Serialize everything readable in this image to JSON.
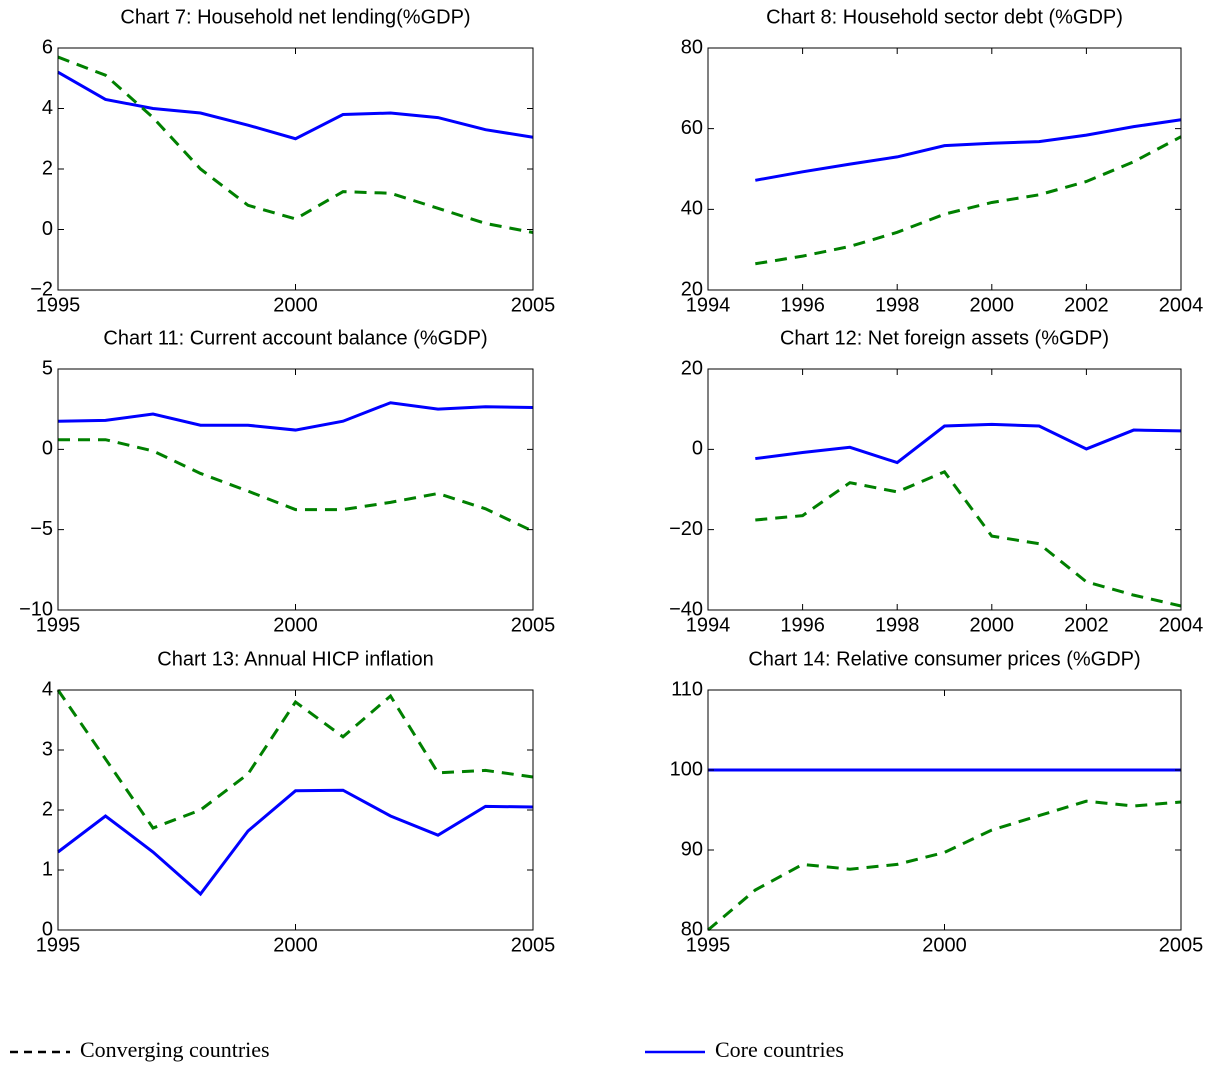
{
  "chart_data": [
    {
      "type": "line",
      "title": "Chart 7: Household net lending(%GDP)",
      "x": [
        1995,
        1996,
        1997,
        1998,
        1999,
        2000,
        2001,
        2002,
        2003,
        2004,
        2005
      ],
      "xlim": [
        1995,
        2005
      ],
      "xticks": [
        1995,
        2000,
        2005
      ],
      "ylim": [
        -2,
        6
      ],
      "yticks": [
        {
          "value": -2,
          "label": "−2"
        },
        0,
        2,
        4,
        6
      ],
      "series": [
        {
          "color": "#0000ff",
          "dash": false,
          "values": [
            5.2,
            4.3,
            4.0,
            3.85,
            3.45,
            3.0,
            3.8,
            3.85,
            3.7,
            3.3,
            3.05
          ]
        },
        {
          "color": "#008000",
          "dash": true,
          "values": [
            5.7,
            5.1,
            3.7,
            2.0,
            0.8,
            0.35,
            1.25,
            1.2,
            0.7,
            0.2,
            -0.1
          ]
        }
      ]
    },
    {
      "type": "line",
      "title": "Chart 8: Household sector debt (%GDP)",
      "x": [
        1995,
        1996,
        1997,
        1998,
        1999,
        2000,
        2001,
        2002,
        2003,
        2004
      ],
      "xlim": [
        1994,
        2004
      ],
      "xticks": [
        1994,
        1996,
        1998,
        2000,
        2002,
        2004
      ],
      "ylim": [
        20,
        80
      ],
      "yticks": [
        20,
        40,
        60,
        80
      ],
      "series": [
        {
          "color": "#0000ff",
          "dash": false,
          "values": [
            47.2,
            49.3,
            51.2,
            53,
            55.8,
            56.4,
            56.8,
            58.4,
            60.5,
            62.2
          ]
        },
        {
          "color": "#008000",
          "dash": true,
          "values": [
            26.5,
            28.4,
            30.8,
            34.3,
            38.8,
            41.7,
            43.6,
            46.9,
            51.8,
            58
          ]
        }
      ]
    },
    {
      "type": "line",
      "title": "Chart 11: Current account balance (%GDP)",
      "x": [
        1995,
        1996,
        1997,
        1998,
        1999,
        2000,
        2001,
        2002,
        2003,
        2004,
        2005
      ],
      "xlim": [
        1995,
        2005
      ],
      "xticks": [
        1995,
        2000,
        2005
      ],
      "ylim": [
        -10,
        5
      ],
      "yticks": [
        {
          "value": -10,
          "label": "−10"
        },
        {
          "value": -5,
          "label": "−5"
        },
        0,
        5
      ],
      "series": [
        {
          "color": "#0000ff",
          "dash": false,
          "values": [
            1.75,
            1.8,
            2.2,
            1.5,
            1.5,
            1.2,
            1.75,
            2.9,
            2.5,
            2.65,
            2.6
          ]
        },
        {
          "color": "#008000",
          "dash": true,
          "values": [
            0.6,
            0.6,
            -0.1,
            -1.5,
            -2.6,
            -3.75,
            -3.75,
            -3.3,
            -2.75,
            -3.7,
            -5.1
          ]
        }
      ]
    },
    {
      "type": "line",
      "title": "Chart 12: Net foreign assets (%GDP)",
      "x": [
        1995,
        1996,
        1997,
        1998,
        1999,
        2000,
        2001,
        2002,
        2003,
        2004
      ],
      "xlim": [
        1994,
        2004
      ],
      "xticks": [
        1994,
        1996,
        1998,
        2000,
        2002,
        2004
      ],
      "ylim": [
        -40,
        20
      ],
      "yticks": [
        {
          "value": -40,
          "label": "−40"
        },
        {
          "value": -20,
          "label": "−20"
        },
        0,
        20
      ],
      "series": [
        {
          "color": "#0000ff",
          "dash": false,
          "values": [
            -2.3,
            -0.8,
            0.5,
            -3.3,
            5.8,
            6.2,
            5.8,
            0.1,
            4.8,
            4.6
          ]
        },
        {
          "color": "#008000",
          "dash": true,
          "values": [
            -17.6,
            -16.5,
            -8.3,
            -10.6,
            -5.6,
            -21.6,
            -23.5,
            -33,
            -36.3,
            -39
          ]
        }
      ]
    },
    {
      "type": "line",
      "title": "Chart 13: Annual HICP inflation",
      "x": [
        1995,
        1996,
        1997,
        1998,
        1999,
        2000,
        2001,
        2002,
        2003,
        2004,
        2005
      ],
      "xlim": [
        1995,
        2005
      ],
      "xticks": [
        1995,
        2000,
        2005
      ],
      "ylim": [
        0,
        4
      ],
      "yticks": [
        0,
        1,
        2,
        3,
        4
      ],
      "series": [
        {
          "color": "#0000ff",
          "dash": false,
          "values": [
            1.3,
            1.9,
            1.3,
            0.6,
            1.65,
            2.32,
            2.33,
            1.9,
            1.58,
            2.06,
            2.05
          ]
        },
        {
          "color": "#008000",
          "dash": true,
          "values": [
            4.0,
            2.85,
            1.7,
            2.0,
            2.6,
            3.8,
            3.22,
            3.9,
            2.62,
            2.66,
            2.55
          ]
        }
      ]
    },
    {
      "type": "line",
      "title": "Chart 14: Relative consumer prices (%GDP)",
      "x": [
        1995,
        1996,
        1997,
        1998,
        1999,
        2000,
        2001,
        2002,
        2003,
        2004,
        2005
      ],
      "xlim": [
        1995,
        2005
      ],
      "xticks": [
        1995,
        2000,
        2005
      ],
      "ylim": [
        80,
        110
      ],
      "yticks": [
        80,
        90,
        100,
        110
      ],
      "series": [
        {
          "color": "#0000ff",
          "dash": false,
          "values": [
            100,
            100,
            100,
            100,
            100,
            100,
            100,
            100,
            100,
            100,
            100
          ]
        },
        {
          "color": "#008000",
          "dash": true,
          "values": [
            80,
            85,
            88.2,
            87.6,
            88.2,
            89.7,
            92.5,
            94.3,
            96.1,
            95.5,
            96
          ]
        }
      ]
    }
  ],
  "legend": [
    {
      "name": "Converging countries",
      "color": "#000000",
      "dash": true
    },
    {
      "name": "Core countries",
      "color": "#0000ff",
      "dash": false
    }
  ]
}
